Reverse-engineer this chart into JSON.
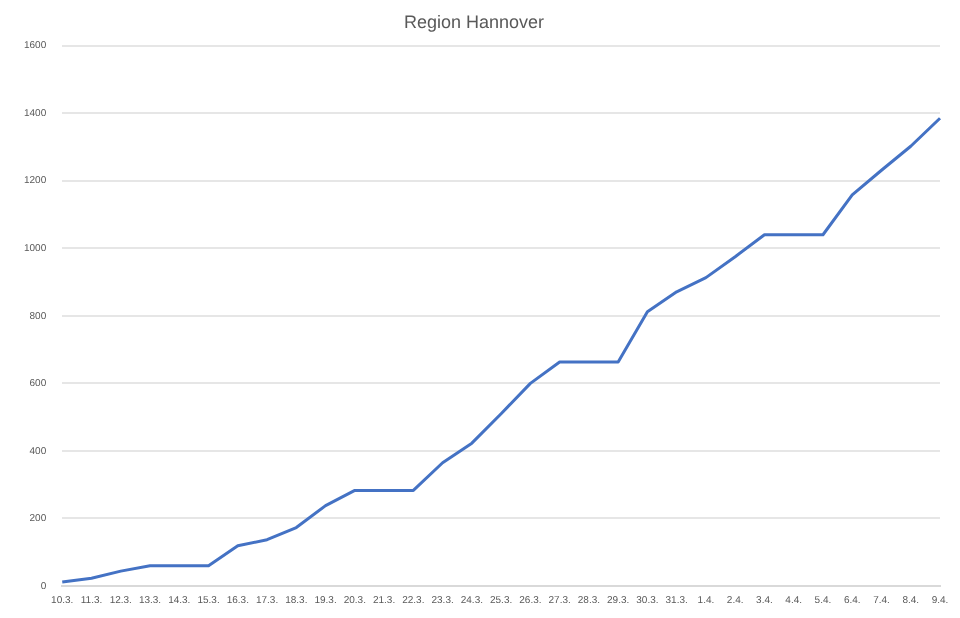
{
  "chart_data": {
    "type": "line",
    "title": "Region Hannover",
    "categories": [
      "10.3.",
      "11.3.",
      "12.3.",
      "13.3.",
      "14.3.",
      "15.3.",
      "16.3.",
      "17.3.",
      "18.3.",
      "19.3.",
      "20.3.",
      "21.3.",
      "22.3.",
      "23.3.",
      "24.3.",
      "25.3.",
      "26.3.",
      "27.3.",
      "28.3.",
      "29.3.",
      "30.3.",
      "31.3.",
      "1.4.",
      "2.4.",
      "3.4.",
      "4.4.",
      "5.4.",
      "6.4.",
      "7.4.",
      "8.4.",
      "9.4."
    ],
    "series": [
      {
        "color": "#4472c4",
        "values": [
          12,
          23,
          44,
          60,
          60,
          60,
          119,
          137,
          173,
          238,
          283,
          283,
          283,
          365,
          423,
          510,
          600,
          663,
          663,
          663,
          812,
          871,
          913,
          975,
          1040,
          1040,
          1040,
          1158,
          1231,
          1302,
          1385
        ]
      }
    ],
    "ylim": [
      0,
      1600
    ],
    "yticks": [
      0,
      200,
      400,
      600,
      800,
      1000,
      1200,
      1400,
      1600
    ],
    "grid": "y",
    "marker": "none",
    "line_style": "solid"
  }
}
